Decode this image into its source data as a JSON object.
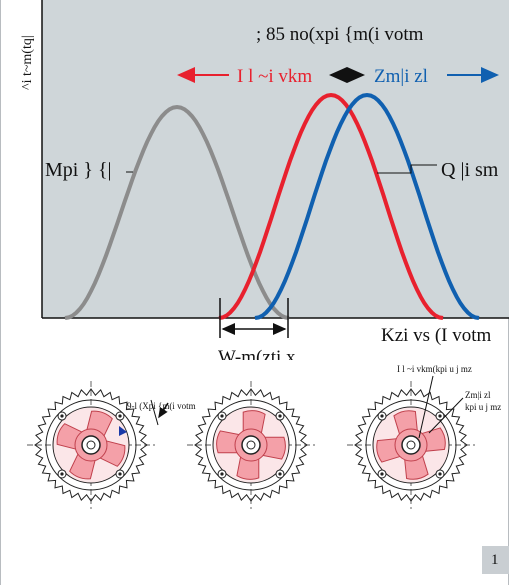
{
  "diagram": {
    "ylabel": "^i t~m(tq|",
    "top_label": "; 85 no(xpi {m(i votm",
    "left_arrow_label": "I l ~i vkm",
    "right_arrow_label": "Zm|i zl",
    "curve_left_label": "Mpi } {|",
    "curve_right_label": "Q |i sm",
    "xlabel": "Kzi vs (I votm",
    "bottom_label": "W-m(zti x",
    "colors": {
      "background": "#cfd6d9",
      "gray_curve": "#8c8c8c",
      "red_curve": "#e8212e",
      "blue_curve": "#1060b0",
      "gear_fill": "#f4a0a8",
      "arrow_blue": "#1a3aa8"
    }
  },
  "gears": {
    "gear1_label": "9-l (Xpi {m(i votm",
    "gear3_label_left": "I l ~i vkm(kpi u j mz",
    "gear3_label_right": "Zm|i zl",
    "gear3_label_right2": "kpi u j mz"
  },
  "page_number": "1"
}
